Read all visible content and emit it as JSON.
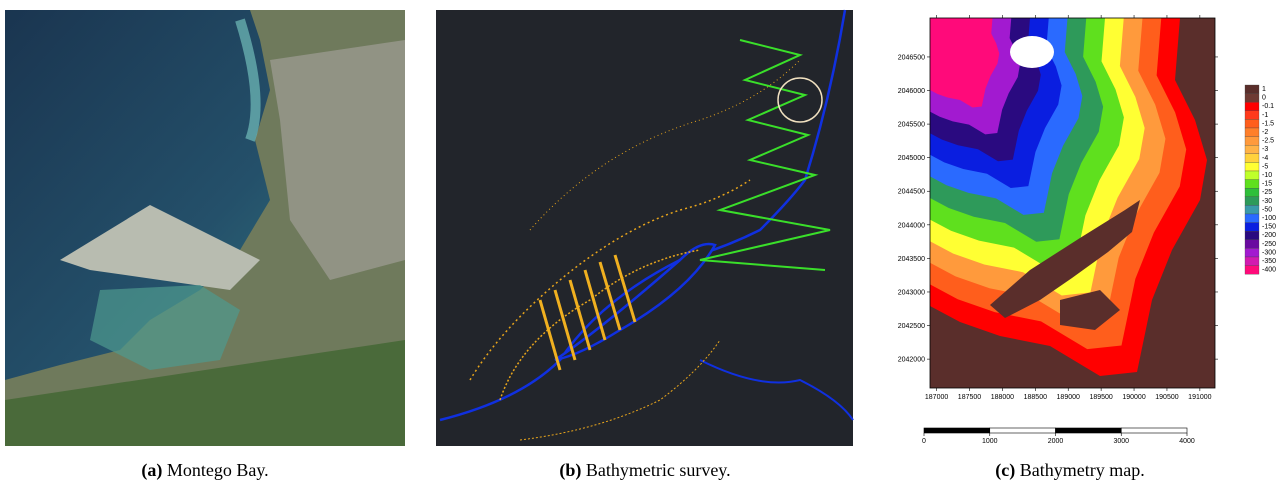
{
  "panels": [
    {
      "label": "(a)",
      "caption": "Montego Bay."
    },
    {
      "label": "(b)",
      "caption": "Bathymetric survey."
    },
    {
      "label": "(c)",
      "caption": "Bathymetry map."
    }
  ],
  "map": {
    "xlim": [
      186900,
      191230
    ],
    "ylim": [
      2041570,
      2047080
    ],
    "xticks": [
      187000,
      187500,
      188000,
      188500,
      189000,
      189500,
      190000,
      190500,
      191000
    ],
    "yticks": [
      2042000,
      2042500,
      2043000,
      2043500,
      2044000,
      2044500,
      2045000,
      2045500,
      2046000,
      2046500
    ],
    "legend": [
      {
        "label": "1",
        "color": "#5a2e2b"
      },
      {
        "label": "0",
        "color": "#6e3a33"
      },
      {
        "label": "-0.1",
        "color": "#ff0000"
      },
      {
        "label": "-1",
        "color": "#ff3a1c"
      },
      {
        "label": "-1.5",
        "color": "#ff5e1c"
      },
      {
        "label": "-2",
        "color": "#ff7f2a"
      },
      {
        "label": "-2.5",
        "color": "#ff9a3c"
      },
      {
        "label": "-3",
        "color": "#ffb347"
      },
      {
        "label": "-4",
        "color": "#ffd23c"
      },
      {
        "label": "-5",
        "color": "#ffff33"
      },
      {
        "label": "-10",
        "color": "#bfff2a"
      },
      {
        "label": "-15",
        "color": "#5fe01e"
      },
      {
        "label": "-25",
        "color": "#2fbf3a"
      },
      {
        "label": "-30",
        "color": "#2e9a5a"
      },
      {
        "label": "-50",
        "color": "#3a9aaa"
      },
      {
        "label": "-100",
        "color": "#2a6aff"
      },
      {
        "label": "-150",
        "color": "#0a1ee0"
      },
      {
        "label": "-200",
        "color": "#2a0a80"
      },
      {
        "label": "-250",
        "color": "#6a0aa0"
      },
      {
        "label": "-300",
        "color": "#a21ad0"
      },
      {
        "label": "-350",
        "color": "#d21ab0"
      },
      {
        "label": "-400",
        "color": "#ff0a7a"
      }
    ],
    "scalebar": [
      0,
      1000,
      2000,
      3000,
      4000
    ]
  }
}
